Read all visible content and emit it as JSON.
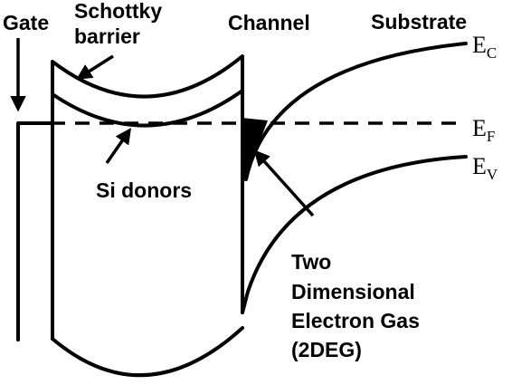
{
  "labels": {
    "gate": "Gate",
    "schottky_line1": "Schottky",
    "schottky_line2": "barrier",
    "channel": "Channel",
    "substrate": "Substrate",
    "si_donors": "Si donors",
    "twodeg_line1": "Two",
    "twodeg_line2": "Dimensional",
    "twodeg_line3": "Electron Gas",
    "twodeg_line4": "(2DEG)"
  },
  "energy_levels": {
    "conduction": {
      "symbol": "E",
      "subscript": "C"
    },
    "fermi": {
      "symbol": "E",
      "subscript": "F"
    },
    "valence": {
      "symbol": "E",
      "subscript": "V"
    }
  },
  "colors": {
    "ink": "#000000",
    "background": "#ffffff"
  }
}
